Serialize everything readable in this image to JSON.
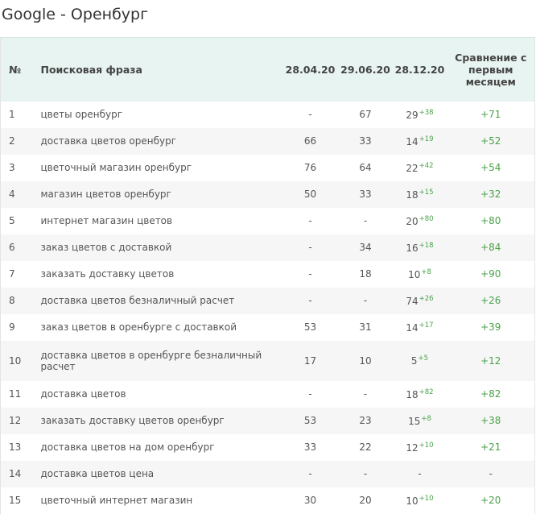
{
  "title": "Google - Оренбург",
  "table": {
    "headers": [
      "№",
      "Поисковая фраза",
      "28.04.20",
      "29.06.20",
      "28.12.20",
      "Сравнение с первым месяцем"
    ],
    "rows": [
      {
        "n": "1",
        "phrase": "цветы оренбург",
        "d1": "-",
        "d2": "67",
        "d3": "29",
        "d3_change": "+38",
        "compare": "+71"
      },
      {
        "n": "2",
        "phrase": "доставка цветов оренбург",
        "d1": "66",
        "d2": "33",
        "d3": "14",
        "d3_change": "+19",
        "compare": "+52"
      },
      {
        "n": "3",
        "phrase": "цветочный магазин оренбург",
        "d1": "76",
        "d2": "64",
        "d3": "22",
        "d3_change": "+42",
        "compare": "+54"
      },
      {
        "n": "4",
        "phrase": "магазин цветов оренбург",
        "d1": "50",
        "d2": "33",
        "d3": "18",
        "d3_change": "+15",
        "compare": "+32"
      },
      {
        "n": "5",
        "phrase": "интернет магазин цветов",
        "d1": "-",
        "d2": "-",
        "d3": "20",
        "d3_change": "+80",
        "compare": "+80"
      },
      {
        "n": "6",
        "phrase": "заказ цветов с доставкой",
        "d1": "-",
        "d2": "34",
        "d3": "16",
        "d3_change": "+18",
        "compare": "+84"
      },
      {
        "n": "7",
        "phrase": "заказать доставку цветов",
        "d1": "-",
        "d2": "18",
        "d3": "10",
        "d3_change": "+8",
        "compare": "+90"
      },
      {
        "n": "8",
        "phrase": "доставка цветов безналичный расчет",
        "d1": "-",
        "d2": "-",
        "d3": "74",
        "d3_change": "+26",
        "compare": "+26"
      },
      {
        "n": "9",
        "phrase": "заказ цветов в оренбурге с доставкой",
        "d1": "53",
        "d2": "31",
        "d3": "14",
        "d3_change": "+17",
        "compare": "+39"
      },
      {
        "n": "10",
        "phrase": "доставка цветов в оренбурге безналичный расчет",
        "d1": "17",
        "d2": "10",
        "d3": "5",
        "d3_change": "+5",
        "compare": "+12"
      },
      {
        "n": "11",
        "phrase": "доставка цветов",
        "d1": "-",
        "d2": "-",
        "d3": "18",
        "d3_change": "+82",
        "compare": "+82"
      },
      {
        "n": "12",
        "phrase": "заказать доставку цветов оренбург",
        "d1": "53",
        "d2": "23",
        "d3": "15",
        "d3_change": "+8",
        "compare": "+38"
      },
      {
        "n": "13",
        "phrase": "доставка цветов на дом оренбург",
        "d1": "33",
        "d2": "22",
        "d3": "12",
        "d3_change": "+10",
        "compare": "+21"
      },
      {
        "n": "14",
        "phrase": "доставка цветов цена",
        "d1": "-",
        "d2": "-",
        "d3": "-",
        "compare": "-"
      },
      {
        "n": "15",
        "phrase": "цветочный интернет магазин",
        "d1": "30",
        "d2": "20",
        "d3": "10",
        "d3_change": "+10",
        "compare": "+20"
      }
    ]
  }
}
